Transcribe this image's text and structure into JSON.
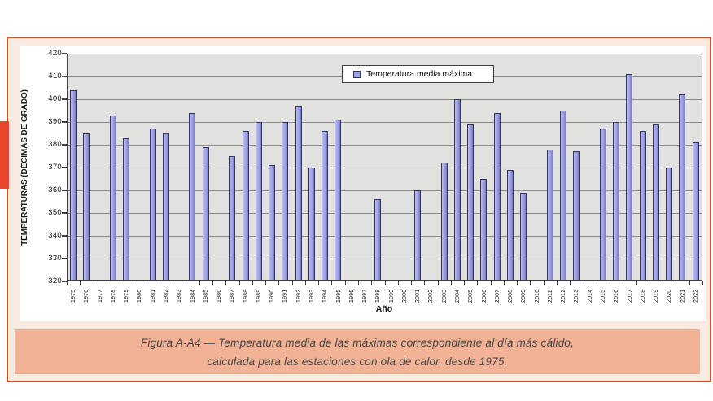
{
  "figure": {
    "caption_line1": "Figura A-A4 — Temperatura media de las máximas correspondiente al día más cálido,",
    "caption_line2": "calculada para las estaciones con ola de calor, desde 1975."
  },
  "chart_data": {
    "type": "bar",
    "title": "",
    "legend": [
      "Temperatura media máxima"
    ],
    "legend_position": "top-center",
    "xlabel": "Año",
    "ylabel": "TEMPERATURAS (DÉCIMAS DE GRADO)",
    "ylim": [
      320,
      420
    ],
    "ytick_step": 10,
    "grid": true,
    "categories": [
      "1975",
      "1976",
      "1977",
      "1978",
      "1979",
      "1980",
      "1981",
      "1982",
      "1983",
      "1984",
      "1985",
      "1986",
      "1987",
      "1988",
      "1989",
      "1990",
      "1991",
      "1992",
      "1993",
      "1994",
      "1995",
      "1996",
      "1997",
      "1998",
      "1999",
      "2000",
      "2001",
      "2002",
      "2003",
      "2004",
      "2005",
      "2006",
      "2007",
      "2008",
      "2009",
      "2010",
      "2011",
      "2012",
      "2013",
      "2014",
      "2015",
      "2016",
      "2017",
      "2018",
      "2019",
      "2020",
      "2021",
      "2022"
    ],
    "values": [
      404,
      385,
      null,
      393,
      383,
      null,
      387,
      385,
      null,
      394,
      379,
      null,
      375,
      386,
      390,
      371,
      390,
      397,
      370,
      386,
      391,
      null,
      null,
      356,
      null,
      null,
      360,
      null,
      372,
      400,
      389,
      365,
      394,
      369,
      359,
      null,
      378,
      395,
      377,
      null,
      387,
      390,
      411,
      386,
      389,
      370,
      402,
      381
    ]
  },
  "colors": {
    "frame_border": "#d84b2e",
    "frame_background": "#fbeae1",
    "accent_tab": "#e8472b",
    "caption_band": "#f2b295",
    "caption_text": "#474747",
    "plot_background": "#e1e1df",
    "gridline": "#8a8a8a",
    "axis": "#3f3f3f",
    "bar_fill": "#9aa0e4",
    "bar_border": "#33335e",
    "legend_background": "#ffffff",
    "text": "#1a1a1a"
  }
}
